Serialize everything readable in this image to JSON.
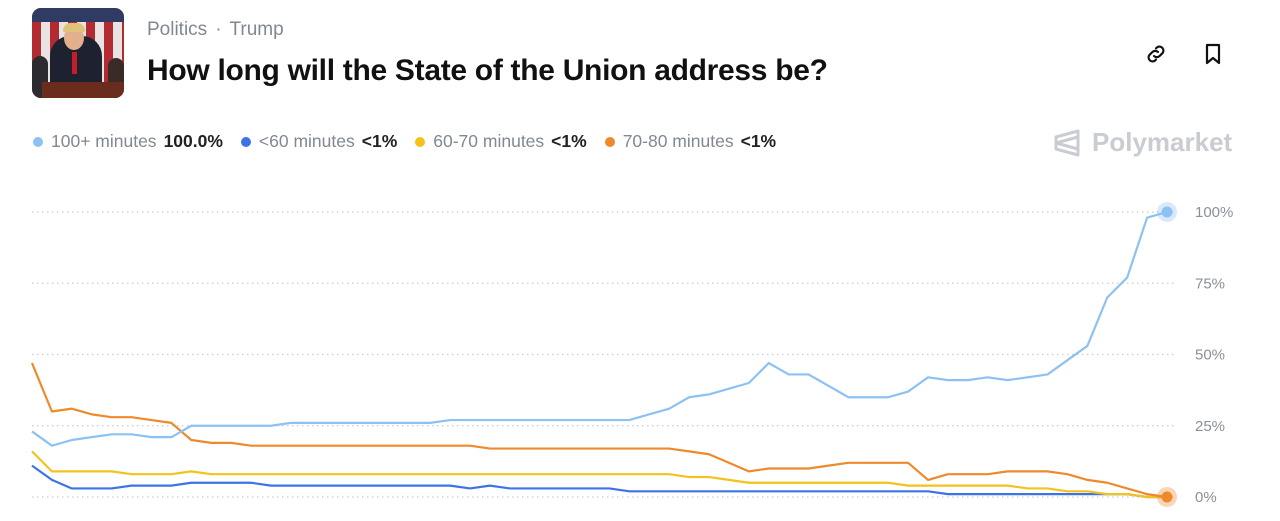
{
  "header": {
    "category": "Politics",
    "separator": "·",
    "tag": "Trump",
    "title": "How long will the State of the Union address be?",
    "actions": [
      {
        "icon": "link-icon"
      },
      {
        "icon": "bookmark-icon"
      }
    ]
  },
  "brand": {
    "name": "Polymarket"
  },
  "legend": [
    {
      "label": "100+ minutes",
      "value": "100.0%",
      "color": "#8ec1f3"
    },
    {
      "label": "<60 minutes",
      "value": "<1%",
      "color": "#3d73e6"
    },
    {
      "label": "60-70 minutes",
      "value": "<1%",
      "color": "#f4c21c"
    },
    {
      "label": "70-80 minutes",
      "value": "<1%",
      "color": "#ee8a2b"
    }
  ],
  "chart_data": {
    "type": "line",
    "ylim": [
      0,
      100
    ],
    "y_ticks": [
      "100%",
      "75%",
      "50%",
      "25%",
      "0%"
    ],
    "y_tick_values": [
      100,
      75,
      50,
      25,
      0
    ],
    "grid": true,
    "y_axis_position": "right",
    "series": [
      {
        "name": "100+ minutes",
        "color": "#8ec1f3",
        "values": [
          23,
          18,
          20,
          21,
          22,
          22,
          21,
          21,
          25,
          25,
          25,
          25,
          25,
          26,
          26,
          26,
          26,
          26,
          26,
          26,
          26,
          27,
          27,
          27,
          27,
          27,
          27,
          27,
          27,
          27,
          27,
          29,
          31,
          35,
          36,
          38,
          40,
          47,
          43,
          43,
          39,
          35,
          35,
          35,
          37,
          42,
          41,
          41,
          42,
          41,
          42,
          43,
          48,
          53,
          70,
          77,
          98,
          100
        ]
      },
      {
        "name": "<60 minutes",
        "color": "#3d73e6",
        "values": [
          11,
          6,
          3,
          3,
          3,
          4,
          4,
          4,
          5,
          5,
          5,
          5,
          4,
          4,
          4,
          4,
          4,
          4,
          4,
          4,
          4,
          4,
          3,
          4,
          3,
          3,
          3,
          3,
          3,
          3,
          2,
          2,
          2,
          2,
          2,
          2,
          2,
          2,
          2,
          2,
          2,
          2,
          2,
          2,
          2,
          2,
          1,
          1,
          1,
          1,
          1,
          1,
          1,
          1,
          1,
          1,
          0,
          0
        ]
      },
      {
        "name": "60-70 minutes",
        "color": "#f4c21c",
        "values": [
          16,
          9,
          9,
          9,
          9,
          8,
          8,
          8,
          9,
          8,
          8,
          8,
          8,
          8,
          8,
          8,
          8,
          8,
          8,
          8,
          8,
          8,
          8,
          8,
          8,
          8,
          8,
          8,
          8,
          8,
          8,
          8,
          8,
          7,
          7,
          6,
          5,
          5,
          5,
          5,
          5,
          5,
          5,
          5,
          4,
          4,
          4,
          4,
          4,
          4,
          3,
          3,
          2,
          2,
          1,
          1,
          0,
          0
        ]
      },
      {
        "name": "70-80 minutes",
        "color": "#ee8a2b",
        "values": [
          47,
          30,
          31,
          29,
          28,
          28,
          27,
          26,
          20,
          19,
          19,
          18,
          18,
          18,
          18,
          18,
          18,
          18,
          18,
          18,
          18,
          18,
          18,
          17,
          17,
          17,
          17,
          17,
          17,
          17,
          17,
          17,
          17,
          16,
          15,
          12,
          9,
          10,
          10,
          10,
          11,
          12,
          12,
          12,
          12,
          6,
          8,
          8,
          8,
          9,
          9,
          9,
          8,
          6,
          5,
          3,
          1,
          0
        ]
      }
    ]
  }
}
